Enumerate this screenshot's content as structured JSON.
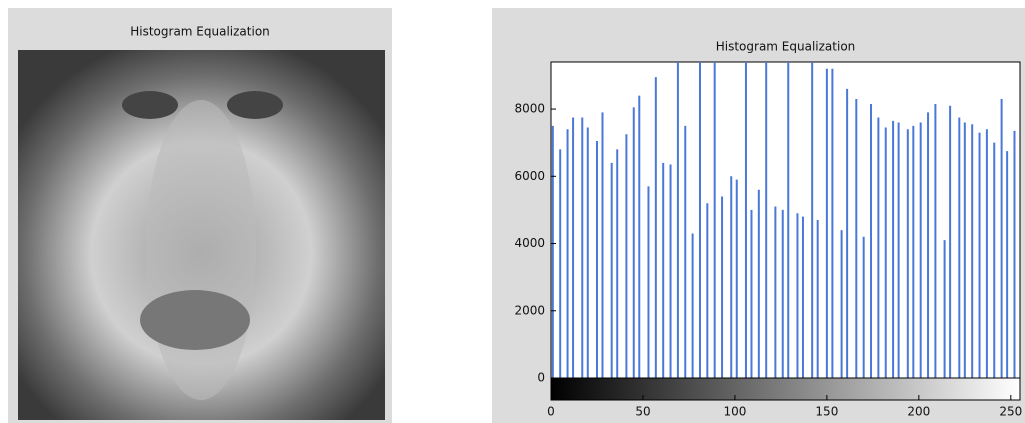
{
  "chart_data": [
    {
      "type": "image",
      "title": "Histogram Equalization"
    },
    {
      "type": "bar",
      "title": "Histogram Equalization",
      "x": [
        1,
        5,
        9,
        12,
        17,
        20,
        25,
        28,
        33,
        36,
        41,
        45,
        48,
        53,
        57,
        61,
        65,
        69,
        73,
        77,
        81,
        85,
        89,
        93,
        98,
        101,
        106,
        109,
        113,
        117,
        122,
        126,
        129,
        134,
        137,
        142,
        145,
        150,
        153,
        158,
        161,
        166,
        170,
        174,
        178,
        182,
        186,
        189,
        194,
        197,
        201,
        205,
        209,
        214,
        217,
        222,
        225,
        229,
        233,
        237,
        241,
        245,
        248,
        252
      ],
      "values": [
        7500,
        6800,
        7400,
        7750,
        7750,
        7450,
        7050,
        7900,
        6400,
        6800,
        7250,
        8050,
        8400,
        5700,
        8950,
        6400,
        6350,
        9400,
        7500,
        4300,
        9400,
        5200,
        9400,
        5400,
        6000,
        5900,
        9400,
        5000,
        5600,
        9400,
        5100,
        5000,
        9400,
        4900,
        4800,
        9400,
        4700,
        9200,
        9200,
        4400,
        8600,
        8300,
        4200,
        8150,
        7750,
        7450,
        7650,
        7600,
        7400,
        7500,
        7600,
        7900,
        8150,
        4100,
        8100,
        7750,
        7600,
        7550,
        7300,
        7400,
        7000,
        8300,
        6750,
        7350
      ],
      "color": "#4a78d8",
      "xlim": [
        0,
        255
      ],
      "ylim": [
        0,
        9400
      ],
      "xticks": [
        0,
        50,
        100,
        150,
        200,
        250
      ],
      "yticks": [
        0,
        2000,
        4000,
        6000,
        8000
      ]
    }
  ]
}
